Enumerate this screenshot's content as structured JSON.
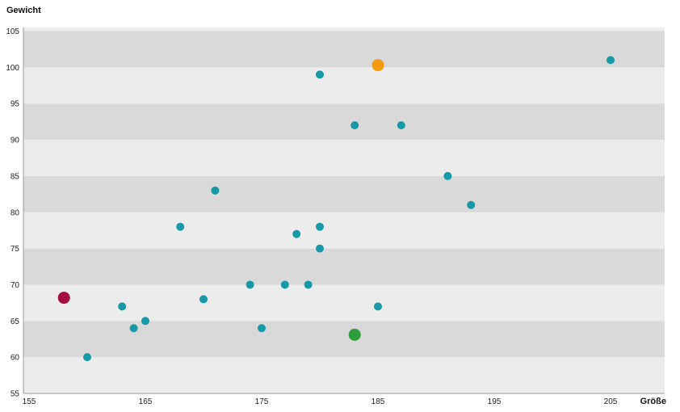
{
  "chart_data": {
    "type": "scatter",
    "title": "",
    "xlabel": "Größe",
    "ylabel": "Gewicht",
    "xlim": [
      155,
      210
    ],
    "ylim": [
      55,
      106
    ],
    "x_ticks": [
      155,
      165,
      175,
      185,
      195,
      205
    ],
    "y_ticks": [
      55,
      60,
      65,
      70,
      75,
      80,
      85,
      90,
      95,
      100,
      105
    ],
    "grid": "alternating horizontal bands",
    "band_colors": [
      "#ececec",
      "#d9d9d9"
    ],
    "series": [
      {
        "color": "#1799a7",
        "points": [
          {
            "x": 160,
            "y": 60
          },
          {
            "x": 163,
            "y": 67
          },
          {
            "x": 164,
            "y": 64
          },
          {
            "x": 165,
            "y": 65
          },
          {
            "x": 168,
            "y": 78
          },
          {
            "x": 170,
            "y": 68
          },
          {
            "x": 171,
            "y": 83
          },
          {
            "x": 174,
            "y": 70
          },
          {
            "x": 175,
            "y": 64
          },
          {
            "x": 177,
            "y": 70
          },
          {
            "x": 178,
            "y": 77
          },
          {
            "x": 179,
            "y": 70
          },
          {
            "x": 180,
            "y": 99
          },
          {
            "x": 180,
            "y": 78
          },
          {
            "x": 180,
            "y": 75
          },
          {
            "x": 183,
            "y": 92
          },
          {
            "x": 185,
            "y": 67
          },
          {
            "x": 187,
            "y": 92
          },
          {
            "x": 191,
            "y": 85
          },
          {
            "x": 193,
            "y": 81
          },
          {
            "x": 205,
            "y": 101
          }
        ]
      },
      {
        "color": "#f39c12",
        "points": [
          {
            "x": 185,
            "y": 100.3
          }
        ]
      },
      {
        "color": "#a50e3f",
        "points": [
          {
            "x": 158,
            "y": 68.2
          }
        ]
      },
      {
        "color": "#2e9e3c",
        "points": [
          {
            "x": 183,
            "y": 63.1
          }
        ]
      }
    ]
  }
}
